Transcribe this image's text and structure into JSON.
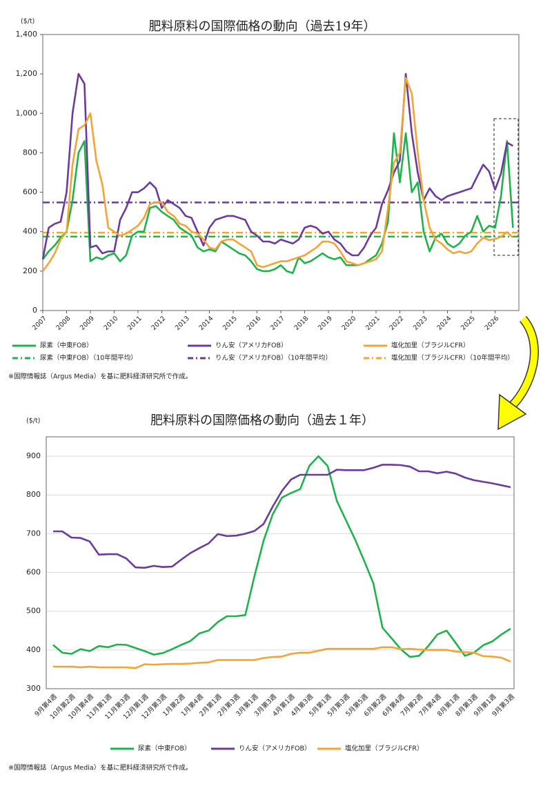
{
  "chart_data": [
    {
      "type": "line",
      "title": "肥料原料の国際価格の動向（過去19年）",
      "y_unit": "($/t)",
      "note": "※国際情報誌（Argus Media）を基に肥料経済研究所で作成。",
      "xlim": [
        2007,
        2027
      ],
      "xticks": [
        2007,
        2008,
        2009,
        2010,
        2011,
        2012,
        2013,
        2014,
        2015,
        2016,
        2017,
        2018,
        2019,
        2020,
        2021,
        2022,
        2023,
        2024,
        2025,
        2026
      ],
      "ylim": [
        0,
        1400
      ],
      "yticks": [
        0,
        200,
        400,
        600,
        800,
        {
          "value": 1000,
          "label": "1,000"
        },
        {
          "value": 1200,
          "label": "1,200"
        },
        {
          "value": 1400,
          "label": "1,400"
        }
      ],
      "grid": false,
      "x": [
        2007,
        2007.25,
        2007.5,
        2007.75,
        2008,
        2008.25,
        2008.5,
        2008.75,
        2009,
        2009.25,
        2009.5,
        2009.75,
        2010,
        2010.25,
        2010.5,
        2010.75,
        2011,
        2011.25,
        2011.5,
        2011.75,
        2012,
        2012.25,
        2012.5,
        2012.75,
        2013,
        2013.25,
        2013.5,
        2013.75,
        2014,
        2014.25,
        2014.5,
        2014.75,
        2015,
        2015.25,
        2015.5,
        2015.75,
        2016,
        2016.25,
        2016.5,
        2016.75,
        2017,
        2017.25,
        2017.5,
        2017.75,
        2018,
        2018.25,
        2018.5,
        2018.75,
        2019,
        2019.25,
        2019.5,
        2019.75,
        2020,
        2020.25,
        2020.5,
        2020.75,
        2021,
        2021.25,
        2021.5,
        2021.75,
        2022,
        2022.25,
        2022.5,
        2022.75,
        2023,
        2023.25,
        2023.5,
        2023.75,
        2024,
        2024.25,
        2024.5,
        2024.75,
        2025,
        2025.25,
        2025.5,
        2025.75,
        2026,
        2026.25,
        2026.5,
        2026.75
      ],
      "series": [
        {
          "name": "尿素（中東FOB）",
          "color": "#1fb14c",
          "values": [
            260,
            300,
            330,
            370,
            400,
            560,
            800,
            860,
            250,
            270,
            260,
            280,
            290,
            250,
            280,
            380,
            400,
            400,
            520,
            530,
            500,
            480,
            460,
            420,
            400,
            380,
            320,
            300,
            310,
            300,
            350,
            330,
            310,
            290,
            280,
            250,
            210,
            200,
            200,
            210,
            230,
            200,
            190,
            270,
            240,
            250,
            270,
            290,
            270,
            260,
            270,
            230,
            230,
            230,
            240,
            260,
            280,
            340,
            450,
            900,
            650,
            900,
            600,
            650,
            400,
            300,
            370,
            390,
            340,
            320,
            340,
            380,
            400,
            480,
            400,
            430,
            420,
            580,
            860,
            420
          ]
        },
        {
          "name": "りん安（アメリカFOB）",
          "color": "#6a3a9c",
          "values": [
            260,
            420,
            440,
            450,
            600,
            1000,
            1200,
            1150,
            320,
            330,
            290,
            300,
            300,
            460,
            520,
            600,
            600,
            620,
            650,
            620,
            520,
            560,
            540,
            520,
            480,
            470,
            400,
            330,
            420,
            460,
            470,
            480,
            480,
            470,
            460,
            400,
            380,
            350,
            350,
            340,
            360,
            350,
            340,
            360,
            420,
            430,
            420,
            390,
            400,
            360,
            340,
            300,
            280,
            280,
            320,
            380,
            420,
            540,
            610,
            700,
            760,
            1200,
            900,
            700,
            560,
            620,
            580,
            560,
            580,
            590,
            600,
            610,
            620,
            680,
            740,
            706,
            613,
            695,
            852,
            835
          ]
        },
        {
          "name": "塩化加里（ブラジルCFR）",
          "color": "#f7a234",
          "values": [
            200,
            240,
            290,
            360,
            400,
            740,
            920,
            940,
            1000,
            760,
            640,
            420,
            400,
            380,
            390,
            410,
            430,
            470,
            540,
            550,
            550,
            500,
            480,
            440,
            430,
            400,
            390,
            360,
            320,
            310,
            350,
            360,
            360,
            340,
            320,
            300,
            230,
            220,
            230,
            240,
            250,
            250,
            260,
            270,
            280,
            300,
            320,
            350,
            350,
            340,
            300,
            250,
            240,
            230,
            240,
            250,
            260,
            300,
            520,
            750,
            800,
            1180,
            1100,
            800,
            560,
            420,
            360,
            340,
            310,
            290,
            300,
            290,
            300,
            340,
            370,
            357,
            363,
            374,
            398,
            370
          ]
        }
      ],
      "reference_lines": [
        {
          "name": "尿素（中東FOB）（10年間平均）",
          "color": "#1fb14c",
          "value": 375
        },
        {
          "name": "りん安（アメリカFOB）（10年間平均）",
          "color": "#6a3a9c",
          "value": 548
        },
        {
          "name": "塩化加里（ブラジルCFR）（10年間平均）",
          "color": "#f7a234",
          "value": 395
        }
      ]
    },
    {
      "type": "line",
      "title": "肥料原料の国際価格の動向（過去１年）",
      "y_unit": "($/t)",
      "note": "※国際情報誌（Argus Media）を基に肥料経済研究所で作成。",
      "ylim": [
        300,
        950
      ],
      "yticks": [
        300,
        400,
        500,
        600,
        700,
        800,
        900
      ],
      "grid": true,
      "categories": [
        "9月第4週",
        null,
        "10月第2週",
        null,
        "10月第4週",
        null,
        "11月第1週",
        null,
        "11月第3週",
        null,
        "12月第1週",
        null,
        "12月第3週",
        null,
        "1月第2週",
        null,
        "1月第4週",
        null,
        "2月第1週",
        null,
        "2月第3週",
        null,
        "3月第1週",
        null,
        "3月第3週",
        null,
        "4月第1週",
        null,
        "4月第3週",
        null,
        "5月第1週",
        null,
        "5月第3週",
        null,
        "5月第5週",
        null,
        "6月第2週",
        null,
        "6月第4週",
        null,
        "7月第2週",
        null,
        "7月第4週",
        null,
        "8月第1週",
        null,
        "8月第3週",
        null,
        "9月第1週",
        null,
        "9月第3週"
      ],
      "series": [
        {
          "name": "尿素（中東FOB）",
          "color": "#1fb14c",
          "values": [
            413,
            393,
            390,
            402,
            397,
            410,
            407,
            414,
            413,
            405,
            397,
            388,
            392,
            402,
            413,
            423,
            443,
            450,
            472,
            487,
            487,
            490,
            590,
            682,
            750,
            793,
            805,
            815,
            875,
            900,
            875,
            785,
            735,
            685,
            630,
            572,
            457,
            430,
            402,
            382,
            385,
            410,
            440,
            450,
            418,
            385,
            393,
            412,
            422,
            440,
            455
          ]
        },
        {
          "name": "りん安（アメリカFOB）",
          "color": "#6a3a9c",
          "values": [
            706,
            706,
            690,
            689,
            680,
            646,
            647,
            647,
            636,
            613,
            612,
            617,
            614,
            615,
            633,
            650,
            663,
            675,
            699,
            694,
            695,
            700,
            707,
            725,
            770,
            810,
            840,
            852,
            852,
            852,
            852,
            865,
            864,
            864,
            864,
            870,
            878,
            878,
            877,
            873,
            861,
            861,
            856,
            860,
            855,
            845,
            838,
            834,
            830,
            825,
            820
          ]
        },
        {
          "name": "塩化加里（ブラジルCFR）",
          "color": "#f7a234",
          "values": [
            357,
            357,
            357,
            355,
            357,
            355,
            355,
            355,
            355,
            353,
            363,
            362,
            363,
            364,
            364,
            365,
            367,
            368,
            374,
            374,
            374,
            374,
            374,
            379,
            382,
            383,
            390,
            393,
            393,
            398,
            403,
            403,
            403,
            403,
            403,
            403,
            407,
            407,
            402,
            403,
            401,
            400,
            400,
            400,
            396,
            394,
            393,
            384,
            383,
            380,
            370
          ]
        }
      ]
    }
  ]
}
